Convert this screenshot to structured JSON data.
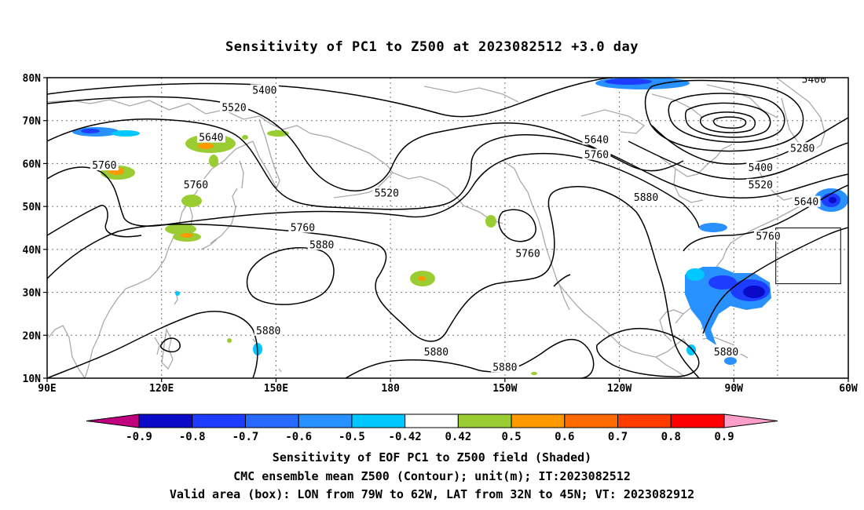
{
  "title": "Sensitivity of PC1 to Z500 at 2023082512 +3.0 day",
  "lon_labels": [
    "90E",
    "120E",
    "150E",
    "180",
    "150W",
    "120W",
    "90W",
    "60W"
  ],
  "lat_labels": [
    "80N",
    "70N",
    "60N",
    "50N",
    "40N",
    "30N",
    "20N",
    "10N"
  ],
  "contour_labels": [
    {
      "text": "5400",
      "lon": 147,
      "lat": 77
    },
    {
      "text": "5520",
      "lon": 139,
      "lat": 73
    },
    {
      "text": "5640",
      "lon": 133,
      "lat": 66
    },
    {
      "text": "5760",
      "lon": 105,
      "lat": 59.5
    },
    {
      "text": "5760",
      "lon": 129,
      "lat": 55
    },
    {
      "text": "5520",
      "lon": 179,
      "lat": 53
    },
    {
      "text": "5760",
      "lon": 157,
      "lat": 45
    },
    {
      "text": "5880",
      "lon": 162,
      "lat": 41
    },
    {
      "text": "5640",
      "lon": -126,
      "lat": 65.5
    },
    {
      "text": "5760",
      "lon": -126,
      "lat": 62
    },
    {
      "text": "5760",
      "lon": -144,
      "lat": 39
    },
    {
      "text": "5880",
      "lon": -113,
      "lat": 52
    },
    {
      "text": "5400",
      "lon": -69,
      "lat": 79.5
    },
    {
      "text": "5280",
      "lon": -72,
      "lat": 63.5
    },
    {
      "text": "5400",
      "lon": -83,
      "lat": 59
    },
    {
      "text": "5520",
      "lon": -83,
      "lat": 55
    },
    {
      "text": "5640",
      "lon": -71,
      "lat": 51
    },
    {
      "text": "5760",
      "lon": -81,
      "lat": 43
    },
    {
      "text": "5880",
      "lon": 148,
      "lat": 21
    },
    {
      "text": "5880",
      "lon": -168,
      "lat": 16
    },
    {
      "text": "5880",
      "lon": -150,
      "lat": 12.5
    },
    {
      "text": "5880",
      "lon": -92,
      "lat": 16
    }
  ],
  "colorbar": {
    "labels": [
      "-0.9",
      "-0.8",
      "-0.7",
      "-0.6",
      "-0.5",
      "-0.42",
      "0.42",
      "0.5",
      "0.6",
      "0.7",
      "0.8",
      "0.9"
    ],
    "colors": [
      "#c0007f",
      "#0a0ac8",
      "#1e3cff",
      "#2869ff",
      "#2890ff",
      "#00c8ff",
      "#ffffff",
      "#9acd32",
      "#ff9900",
      "#ff6a00",
      "#ff3c00",
      "#ff0000",
      "#ff9ec8"
    ]
  },
  "captions": [
    "Sensitivity of EOF PC1 to Z500 field (Shaded)",
    "CMC ensemble mean Z500 (Contour); unit(m); IT:2023082512",
    "Valid area (box): LON from 79W to 62W, LAT from 32N to 45N; VT: 2023082912"
  ],
  "valid_box": {
    "lon_min": -79,
    "lon_max": -62,
    "lat_min": 32,
    "lat_max": 45
  }
}
